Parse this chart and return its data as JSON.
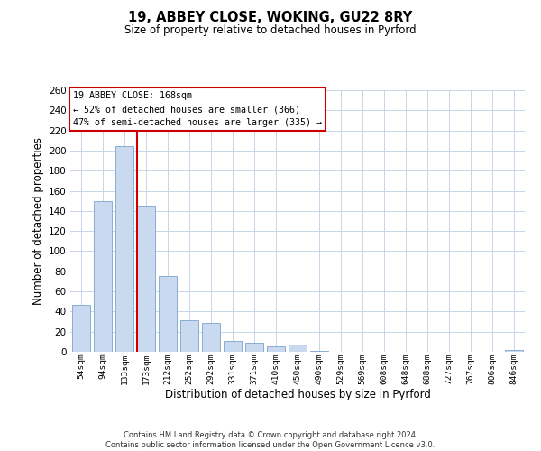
{
  "title1": "19, ABBEY CLOSE, WOKING, GU22 8RY",
  "title2": "Size of property relative to detached houses in Pyrford",
  "xlabel": "Distribution of detached houses by size in Pyrford",
  "ylabel": "Number of detached properties",
  "bar_labels": [
    "54sqm",
    "94sqm",
    "133sqm",
    "173sqm",
    "212sqm",
    "252sqm",
    "292sqm",
    "331sqm",
    "371sqm",
    "410sqm",
    "450sqm",
    "490sqm",
    "529sqm",
    "569sqm",
    "608sqm",
    "648sqm",
    "688sqm",
    "727sqm",
    "767sqm",
    "806sqm",
    "846sqm"
  ],
  "bar_values": [
    47,
    150,
    204,
    145,
    75,
    31,
    29,
    11,
    9,
    5,
    7,
    1,
    0,
    0,
    0,
    0,
    0,
    0,
    0,
    0,
    2
  ],
  "bar_color": "#c8d9f0",
  "bar_edgecolor": "#7ba3cc",
  "vline_color": "#cc0000",
  "ylim": [
    0,
    260
  ],
  "yticks": [
    0,
    20,
    40,
    60,
    80,
    100,
    120,
    140,
    160,
    180,
    200,
    220,
    240,
    260
  ],
  "annotation_title": "19 ABBEY CLOSE: 168sqm",
  "annotation_line2": "← 52% of detached houses are smaller (366)",
  "annotation_line3": "47% of semi-detached houses are larger (335) →",
  "annotation_box_color": "#ffffff",
  "annotation_box_edgecolor": "#cc0000",
  "footnote1": "Contains HM Land Registry data © Crown copyright and database right 2024.",
  "footnote2": "Contains public sector information licensed under the Open Government Licence v3.0.",
  "background_color": "#ffffff",
  "grid_color": "#c8d4e8"
}
